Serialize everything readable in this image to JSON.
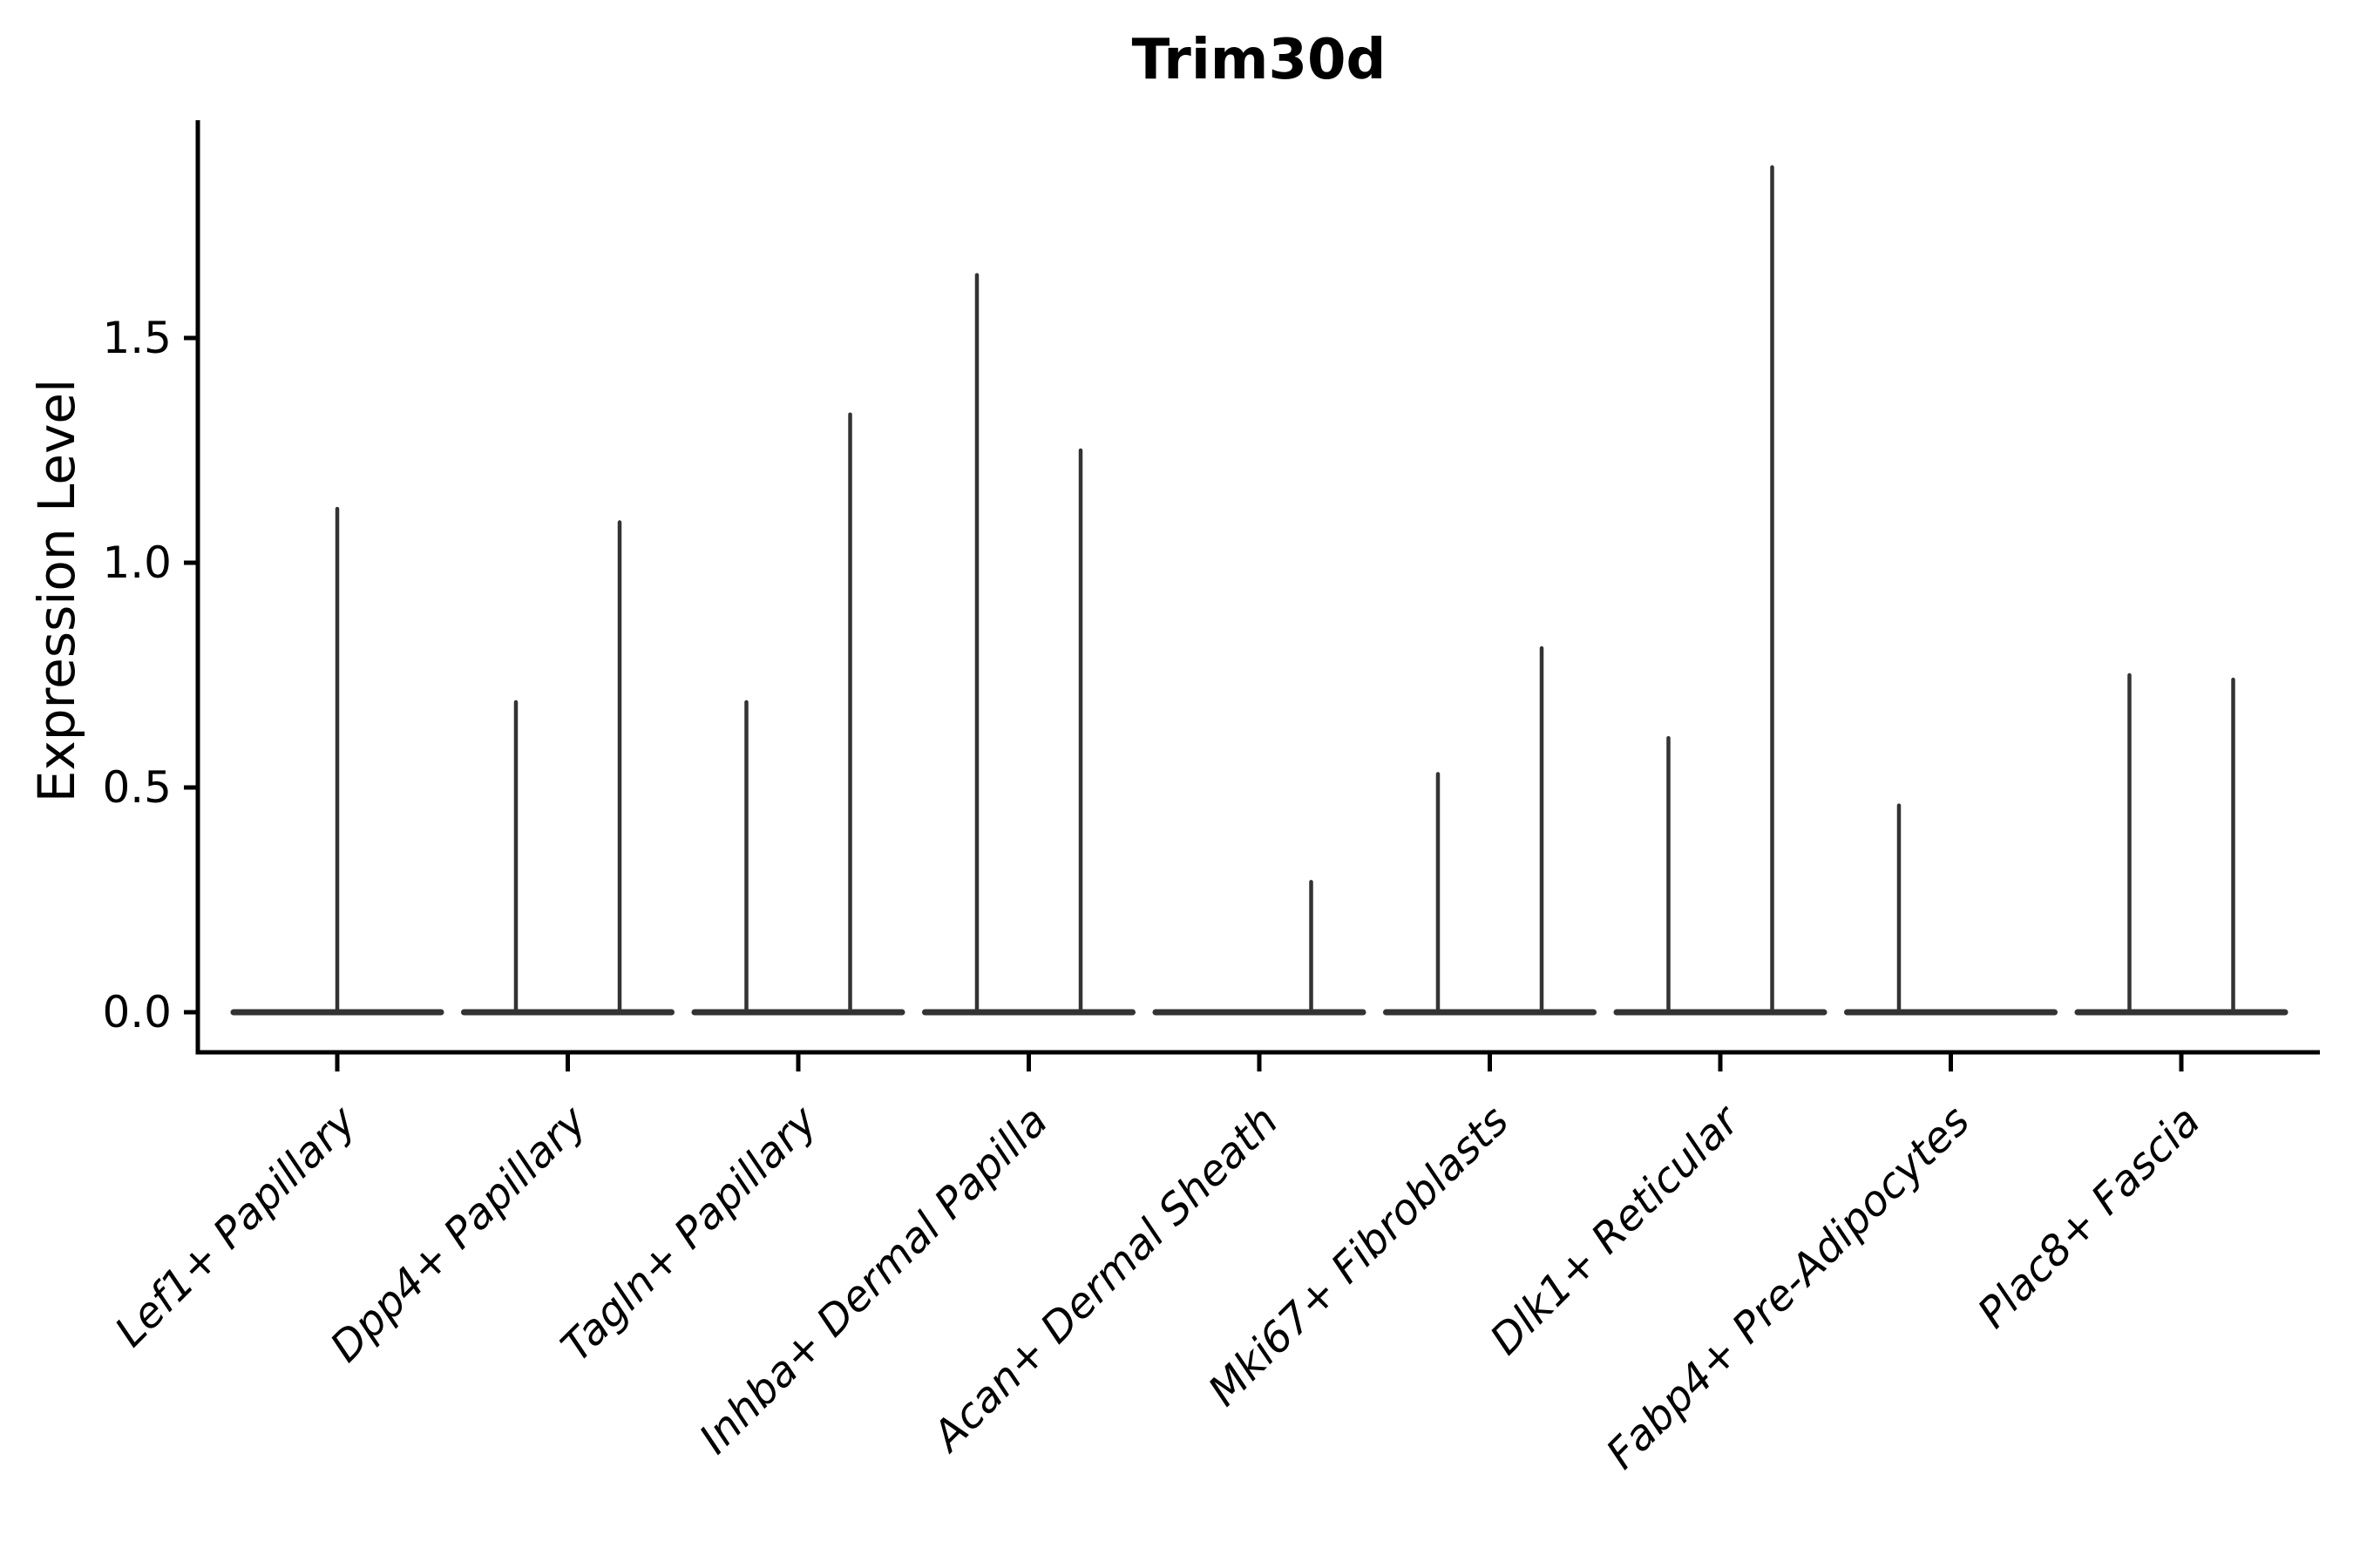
{
  "figure": {
    "title": "Trim30d"
  },
  "chart_data": {
    "type": "violin",
    "title": "Trim30d",
    "subtitle": "",
    "xlabel": "",
    "ylabel": "Expression Level",
    "legend": "none",
    "grid": false,
    "background": "#ffffff",
    "axis_color": "#000000",
    "violin_color": "#333333",
    "ylim": [
      -0.09,
      1.99
    ],
    "yticks": [
      0.0,
      0.5,
      1.0,
      1.5
    ],
    "ytick_labels": [
      "0.0",
      "0.5",
      "1.0",
      "1.5"
    ],
    "categories": [
      "Lef1+ Papillary",
      "Dpp4+ Papillary",
      "Tagln+ Papillary",
      "Inhba+ Dermal Papilla",
      "Acan+ Dermal Sheath",
      "Mki67+ Fibroblasts",
      "Dlk1+ Reticular",
      "Fabp4+ Pre-Adipocytes",
      "Plac8+ Fascia"
    ],
    "violin_base_halfwidth": 0.45,
    "series": [
      {
        "category": "Lef1+ Papillary",
        "violins": [
          {
            "offset": 0.0,
            "max": 1.12
          }
        ]
      },
      {
        "category": "Dpp4+ Papillary",
        "violins": [
          {
            "offset": -0.225,
            "max": 0.69
          },
          {
            "offset": 0.225,
            "max": 1.09
          }
        ]
      },
      {
        "category": "Tagln+ Papillary",
        "violins": [
          {
            "offset": -0.225,
            "max": 0.69
          },
          {
            "offset": 0.225,
            "max": 1.33
          }
        ]
      },
      {
        "category": "Inhba+ Dermal Papilla",
        "violins": [
          {
            "offset": -0.225,
            "max": 1.64
          },
          {
            "offset": 0.225,
            "max": 1.25
          }
        ]
      },
      {
        "category": "Acan+ Dermal Sheath",
        "violins": [
          {
            "offset": -0.225,
            "max": 0.0
          },
          {
            "offset": 0.225,
            "max": 0.29
          }
        ]
      },
      {
        "category": "Mki67+ Fibroblasts",
        "violins": [
          {
            "offset": -0.225,
            "max": 0.53
          },
          {
            "offset": 0.225,
            "max": 0.81
          }
        ]
      },
      {
        "category": "Dlk1+ Reticular",
        "violins": [
          {
            "offset": -0.225,
            "max": 0.61
          },
          {
            "offset": 0.225,
            "max": 1.88
          }
        ]
      },
      {
        "category": "Fabp4+ Pre-Adipocytes",
        "violins": [
          {
            "offset": -0.225,
            "max": 0.46
          },
          {
            "offset": 0.225,
            "max": 0.0
          }
        ]
      },
      {
        "category": "Plac8+ Fascia",
        "violins": [
          {
            "offset": -0.225,
            "max": 0.75
          },
          {
            "offset": 0.225,
            "max": 0.74
          }
        ]
      }
    ]
  }
}
